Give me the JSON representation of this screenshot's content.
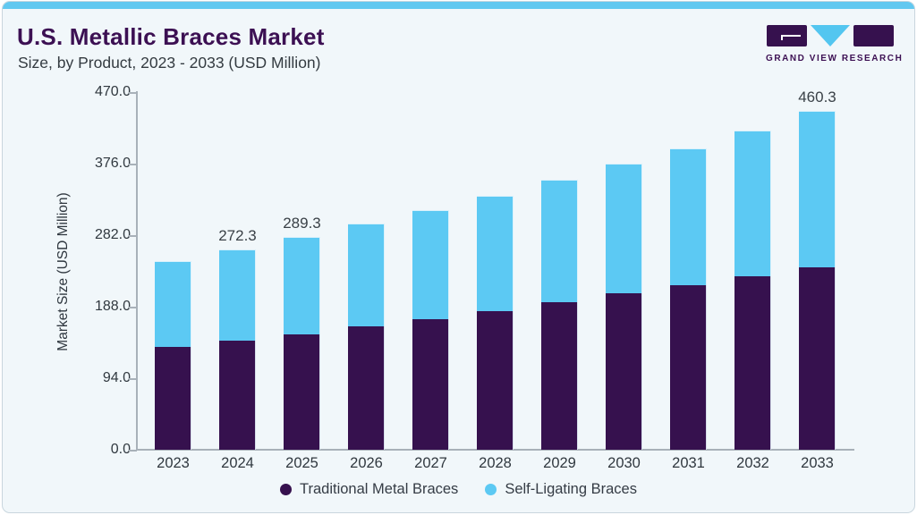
{
  "header": {
    "title": "U.S. Metallic Braces Market",
    "subtitle": "Size, by Product, 2023 - 2033 (USD Million)",
    "logo_text": "GRAND VIEW RESEARCH"
  },
  "colors": {
    "accent_bar": "#62C8F0",
    "card_background": "#F1F7FA",
    "title_text": "#3C1053",
    "traditional_series": "#36114E",
    "self_ligating_series": "#5CC9F3",
    "axis": "#A8B1B9"
  },
  "chart_data": {
    "type": "bar",
    "stacked": true,
    "title": "U.S. Metallic Braces Market",
    "subtitle": "Size, by Product, 2023 - 2033 (USD Million)",
    "categories": [
      "2023",
      "2024",
      "2025",
      "2026",
      "2027",
      "2028",
      "2029",
      "2030",
      "2031",
      "2032",
      "2033"
    ],
    "series": [
      {
        "name": "Traditional Metal Braces",
        "color": "#36114E",
        "values": [
          139.5,
          148.0,
          156.5,
          167.4,
          177.1,
          188.1,
          200.2,
          213.0,
          223.3,
          235.5,
          247.6
        ]
      },
      {
        "name": "Self-Ligating Braces",
        "color": "#5CC9F3",
        "values": [
          116.9,
          124.3,
          132.8,
          139.8,
          148.5,
          157.3,
          166.2,
          175.7,
          186.5,
          198.7,
          212.7
        ]
      }
    ],
    "totals": [
      256.4,
      272.3,
      289.3,
      307.2,
      325.6,
      345.4,
      366.4,
      388.7,
      409.8,
      434.2,
      460.3
    ],
    "visible_total_labels": {
      "2024": "272.3",
      "2025": "289.3",
      "2033": "460.3"
    },
    "xlabel": "",
    "ylabel": "Market Size (USD Million)",
    "yticks": [
      "470.0",
      "376.0",
      "282.0",
      "188.0",
      "94.0",
      "0.0"
    ],
    "ylim": [
      0,
      470
    ],
    "grid": false,
    "legend_position": "bottom"
  }
}
